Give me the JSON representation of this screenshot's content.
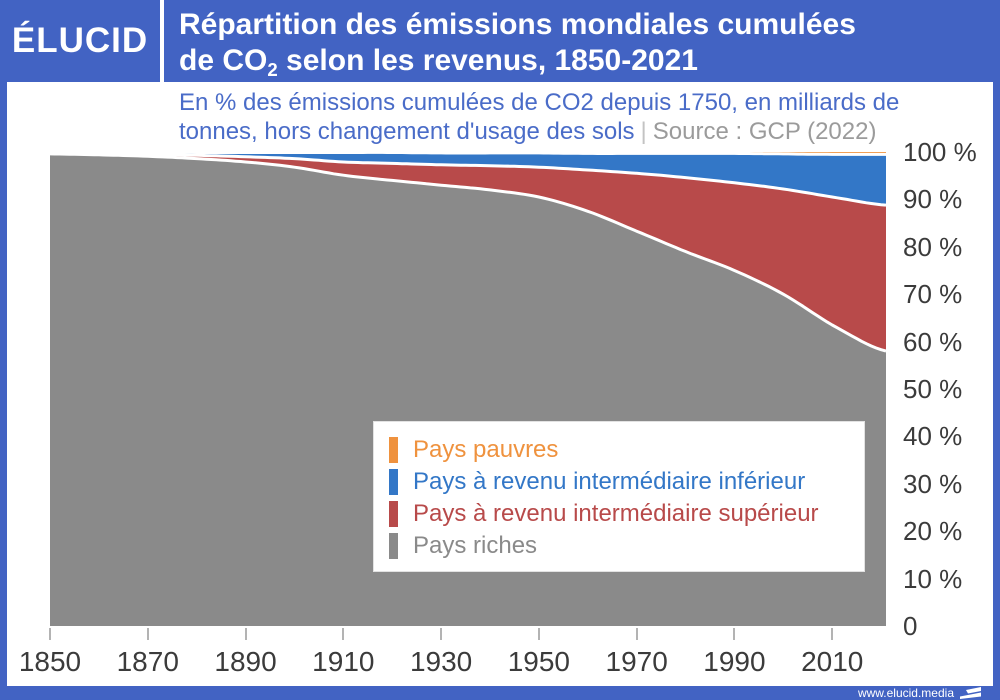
{
  "header": {
    "logo": "ÉLUCID",
    "title_line1": "Répartition des émissions mondiales cumulées",
    "title_line2_prefix": "de CO",
    "title_line2_sub": "2",
    "title_line2_suffix": " selon les revenus, 1850-2021"
  },
  "subtitle": {
    "line1": "En % des émissions cumulées de CO2 depuis 1750, en milliards de",
    "line2": "tonnes, hors changement d'usage des sols",
    "separator": "|",
    "source": "Source : GCP (2022)"
  },
  "colors": {
    "banner_blue": "#4263c3",
    "subtitle_blue": "#4a6cc8",
    "source_gray": "#9b9b9b",
    "axis_text": "#3b3b3b",
    "boundary_stroke": "#ffffff",
    "poor_orange": "#ef923e",
    "lower_mid_blue": "#3377c7",
    "upper_mid_red": "#b84a4a",
    "rich_gray": "#8a8a8a"
  },
  "legend": {
    "items": [
      {
        "label": "Pays pauvres",
        "color": "#ef923e"
      },
      {
        "label": "Pays à revenu intermédiaire inférieur",
        "color": "#3377c7"
      },
      {
        "label": "Pays à revenu intermédiaire supérieur",
        "color": "#b84a4a"
      },
      {
        "label": "Pays riches",
        "color": "#8a8a8a"
      }
    ]
  },
  "chart_data": {
    "type": "area",
    "stacked": true,
    "unit": "% of cumulative CO2 emissions since 1750",
    "xlim": [
      1850,
      2021
    ],
    "ylim": [
      0,
      100
    ],
    "grid": false,
    "legend_position": "inside-bottom-center",
    "x": [
      1850,
      1860,
      1870,
      1880,
      1890,
      1900,
      1910,
      1920,
      1930,
      1940,
      1950,
      1960,
      1970,
      1980,
      1990,
      2000,
      2010,
      2021
    ],
    "series": [
      {
        "name": "Pays riches",
        "color": "#8a8a8a",
        "values": [
          99.6,
          99.4,
          99.1,
          98.6,
          97.9,
          96.8,
          95.1,
          94.0,
          93.0,
          92.0,
          90.5,
          87.5,
          83.3,
          79.0,
          75.0,
          70.0,
          63.5,
          58.0
        ]
      },
      {
        "name": "Pays à revenu intermédiaire supérieur",
        "color": "#b84a4a",
        "values": [
          0.2,
          0.3,
          0.45,
          0.7,
          1.1,
          1.8,
          2.8,
          3.6,
          4.3,
          5.1,
          6.3,
          8.7,
          12.2,
          15.6,
          18.5,
          22.2,
          27.0,
          30.8
        ]
      },
      {
        "name": "Pays à revenu intermédiaire inférieur",
        "color": "#3377c7",
        "values": [
          0.2,
          0.3,
          0.45,
          0.6,
          0.9,
          1.3,
          2.0,
          2.3,
          2.5,
          2.7,
          3.0,
          3.5,
          4.2,
          5.1,
          6.2,
          7.4,
          9.0,
          10.7
        ]
      },
      {
        "name": "Pays pauvres",
        "color": "#ef923e",
        "values": [
          0.0,
          0.0,
          0.0,
          0.1,
          0.1,
          0.1,
          0.1,
          0.1,
          0.2,
          0.2,
          0.2,
          0.3,
          0.3,
          0.3,
          0.3,
          0.4,
          0.5,
          0.5
        ]
      }
    ],
    "xticks": [
      "1850",
      "1870",
      "1890",
      "1910",
      "1930",
      "1950",
      "1970",
      "1990",
      "2010"
    ],
    "yticks": [
      {
        "label": "100 %",
        "value": 100
      },
      {
        "label": "90 %",
        "value": 90
      },
      {
        "label": "80 %",
        "value": 80
      },
      {
        "label": "70 %",
        "value": 70
      },
      {
        "label": "60 %",
        "value": 60
      },
      {
        "label": "50 %",
        "value": 50
      },
      {
        "label": "40 %",
        "value": 40
      },
      {
        "label": "30 %",
        "value": 30
      },
      {
        "label": "20 %",
        "value": 20
      },
      {
        "label": "10 %",
        "value": 10
      },
      {
        "label": "0",
        "value": 0
      }
    ]
  },
  "footer": {
    "url": "www.elucid.media"
  }
}
